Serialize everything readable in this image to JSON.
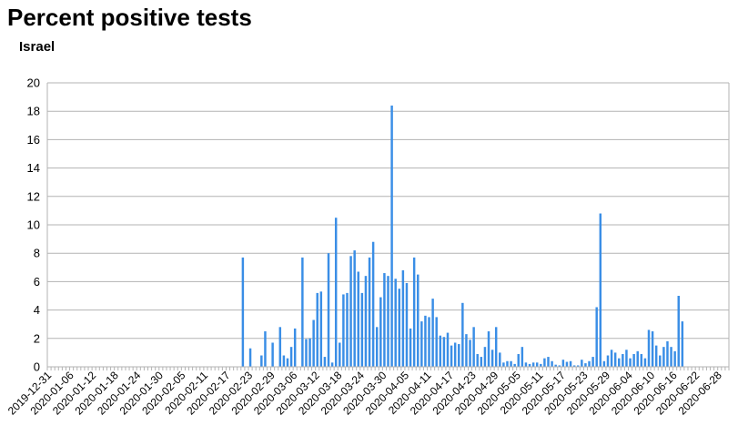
{
  "title": "Percent positive tests",
  "subtitle": "Israel",
  "chart_data": {
    "type": "bar",
    "title": "Percent positive tests",
    "subtitle": "Israel",
    "xlabel": "",
    "ylabel": "",
    "ylim": [
      0,
      20
    ],
    "yticks": [
      0,
      2,
      4,
      6,
      8,
      10,
      12,
      14,
      16,
      18,
      20
    ],
    "xlim": [
      "2019-12-31",
      "2020-07-01"
    ],
    "xtick_labels": [
      "2019-12-31",
      "2020-01-06",
      "2020-01-12",
      "2020-01-18",
      "2020-01-24",
      "2020-01-30",
      "2020-02-05",
      "2020-02-11",
      "2020-02-17",
      "2020-02-23",
      "2020-02-29",
      "2020-03-06",
      "2020-03-12",
      "2020-03-18",
      "2020-03-24",
      "2020-03-30",
      "2020-04-05",
      "2020-04-11",
      "2020-04-17",
      "2020-04-23",
      "2020-04-29",
      "2020-05-05",
      "2020-05-11",
      "2020-05-17",
      "2020-05-23",
      "2020-05-29",
      "2020-06-04",
      "2020-06-10",
      "2020-06-16",
      "2020-06-22",
      "2020-06-28"
    ],
    "grid": "horizontal",
    "bar_color": "#3a8ee6",
    "x": [
      "2020-02-21",
      "2020-02-23",
      "2020-02-26",
      "2020-02-27",
      "2020-02-29",
      "2020-03-02",
      "2020-03-03",
      "2020-03-04",
      "2020-03-05",
      "2020-03-06",
      "2020-03-08",
      "2020-03-09",
      "2020-03-10",
      "2020-03-11",
      "2020-03-12",
      "2020-03-13",
      "2020-03-14",
      "2020-03-15",
      "2020-03-16",
      "2020-03-17",
      "2020-03-18",
      "2020-03-19",
      "2020-03-20",
      "2020-03-21",
      "2020-03-22",
      "2020-03-23",
      "2020-03-24",
      "2020-03-25",
      "2020-03-26",
      "2020-03-27",
      "2020-03-28",
      "2020-03-29",
      "2020-03-30",
      "2020-03-31",
      "2020-04-01",
      "2020-04-02",
      "2020-04-03",
      "2020-04-04",
      "2020-04-05",
      "2020-04-06",
      "2020-04-07",
      "2020-04-08",
      "2020-04-09",
      "2020-04-10",
      "2020-04-11",
      "2020-04-12",
      "2020-04-13",
      "2020-04-14",
      "2020-04-15",
      "2020-04-16",
      "2020-04-17",
      "2020-04-18",
      "2020-04-19",
      "2020-04-20",
      "2020-04-21",
      "2020-04-22",
      "2020-04-23",
      "2020-04-24",
      "2020-04-25",
      "2020-04-26",
      "2020-04-27",
      "2020-04-28",
      "2020-04-29",
      "2020-04-30",
      "2020-05-01",
      "2020-05-02",
      "2020-05-03",
      "2020-05-04",
      "2020-05-05",
      "2020-05-06",
      "2020-05-07",
      "2020-05-08",
      "2020-05-09",
      "2020-05-10",
      "2020-05-11",
      "2020-05-12",
      "2020-05-13",
      "2020-05-14",
      "2020-05-15",
      "2020-05-16",
      "2020-05-17",
      "2020-05-18",
      "2020-05-19",
      "2020-05-20",
      "2020-05-21",
      "2020-05-22",
      "2020-05-23",
      "2020-05-24",
      "2020-05-25",
      "2020-05-26",
      "2020-05-27",
      "2020-05-28",
      "2020-05-29",
      "2020-05-30",
      "2020-05-31",
      "2020-06-01",
      "2020-06-02",
      "2020-06-03",
      "2020-06-04",
      "2020-06-05",
      "2020-06-06",
      "2020-06-07",
      "2020-06-08",
      "2020-06-09",
      "2020-06-10",
      "2020-06-11",
      "2020-06-12",
      "2020-06-13",
      "2020-06-14",
      "2020-06-15",
      "2020-06-16",
      "2020-06-17",
      "2020-06-18",
      "2020-06-19",
      "2020-06-20",
      "2020-06-21",
      "2020-06-22"
    ],
    "values": [
      7.7,
      1.3,
      0.8,
      2.5,
      1.7,
      2.8,
      0.8,
      0.6,
      1.4,
      2.7,
      7.7,
      1.95,
      2.0,
      3.3,
      5.2,
      5.3,
      0.7,
      8.0,
      0.3,
      10.5,
      1.7,
      5.1,
      5.2,
      7.8,
      8.2,
      6.7,
      5.2,
      6.4,
      7.7,
      8.8,
      2.8,
      4.9,
      6.6,
      6.4,
      18.4,
      6.2,
      5.5,
      6.8,
      5.9,
      2.7,
      7.7,
      6.5,
      3.2,
      3.6,
      3.5,
      4.8,
      3.5,
      2.2,
      2.1,
      2.4,
      1.5,
      1.7,
      1.6,
      4.5,
      2.3,
      1.9,
      2.8,
      0.9,
      0.7,
      1.4,
      2.5,
      1.2,
      2.8,
      1.0,
      0.3,
      0.4,
      0.4,
      0.2,
      0.9,
      1.4,
      0.3,
      0.2,
      0.3,
      0.3,
      0.2,
      0.6,
      0.7,
      0.4,
      0.15,
      0.1,
      0.5,
      0.35,
      0.4,
      0.1,
      0.1,
      0.5,
      0.25,
      0.4,
      0.7,
      4.2,
      10.8,
      0.4,
      0.8,
      1.2,
      1.0,
      0.6,
      0.9,
      1.2,
      0.6,
      0.9,
      1.1,
      0.9,
      0.6,
      2.6,
      2.5,
      1.5,
      0.8,
      1.4,
      1.8,
      1.4,
      1.1,
      5.0,
      3.2,
      0,
      0,
      0,
      0
    ]
  }
}
